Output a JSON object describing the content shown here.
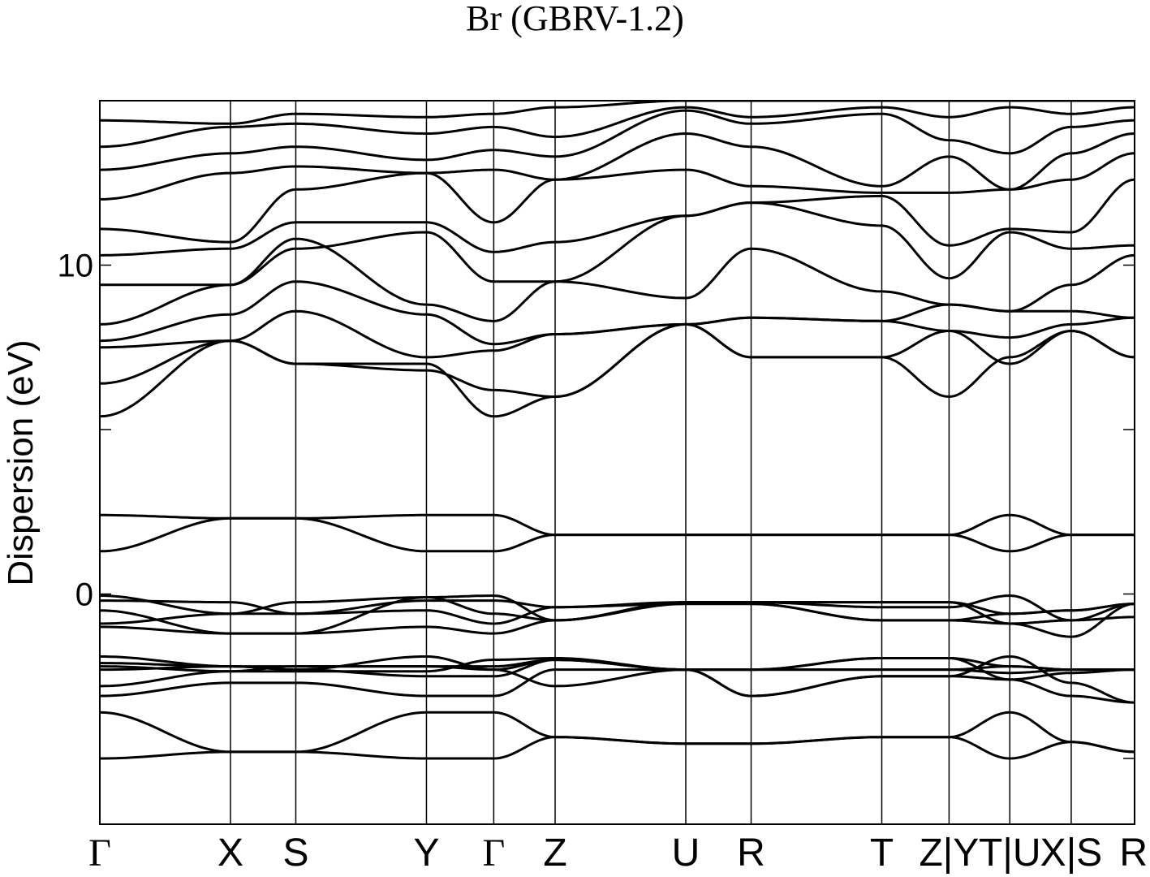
{
  "chart_data": {
    "type": "line",
    "title": "Br (GBRV-1.2)",
    "ylabel": "Dispersion (eV)",
    "ylim": [
      -7.0,
      15.0
    ],
    "yticks": [
      -5,
      0,
      5,
      10,
      15
    ],
    "ytick_labels": [
      "",
      "0",
      "",
      "10",
      ""
    ],
    "x_range": [
      0,
      15.84
    ],
    "kpath": [
      {
        "label": "Γ",
        "x": 0.0
      },
      {
        "label": "X",
        "x": 2.0
      },
      {
        "label": "S",
        "x": 3.0
      },
      {
        "label": "Y",
        "x": 5.0
      },
      {
        "label": "Γ",
        "x": 6.03
      },
      {
        "label": "Z",
        "x": 6.97
      },
      {
        "label": "U",
        "x": 8.97
      },
      {
        "label": "R",
        "x": 9.97
      },
      {
        "label": "T",
        "x": 11.97
      },
      {
        "label": "Z|Y",
        "x": 13.0
      },
      {
        "label": "T|U",
        "x": 13.93
      },
      {
        "label": "X|S",
        "x": 14.87
      },
      {
        "label": "R",
        "x": 15.84
      }
    ],
    "grid": false,
    "line_color": "#000000",
    "series": [
      {
        "y": [
          -5.0,
          -4.8,
          -4.8,
          -5.0,
          -5.0,
          -4.35,
          -4.55,
          -4.55,
          -4.35,
          -4.35,
          -5.0,
          -4.5,
          -4.8
        ]
      },
      {
        "y": [
          -3.6,
          -4.8,
          -4.8,
          -3.6,
          -3.6,
          -4.35,
          -4.55,
          -4.55,
          -4.35,
          -4.35,
          -3.6,
          -4.5,
          -4.8
        ]
      },
      {
        "y": [
          -3.1,
          -2.7,
          -2.7,
          -3.1,
          -3.1,
          -2.3,
          -2.3,
          -2.3,
          -2.3,
          -2.3,
          -2.4,
          -2.3,
          -2.3
        ]
      },
      {
        "y": [
          -2.8,
          -2.35,
          -2.2,
          -2.2,
          -2.2,
          -2.0,
          -2.3,
          -2.3,
          -1.95,
          -1.95,
          -2.2,
          -2.3,
          -2.3
        ]
      },
      {
        "y": [
          -2.3,
          -2.2,
          -2.2,
          -2.2,
          -2.3,
          -2.0,
          -2.3,
          -3.1,
          -2.5,
          -2.5,
          -2.6,
          -3.1,
          -3.3
        ]
      },
      {
        "y": [
          -2.2,
          -2.35,
          -2.35,
          -2.35,
          -2.0,
          -1.95,
          -2.3,
          -3.1,
          -2.5,
          -2.5,
          -1.9,
          -2.7,
          -3.3
        ]
      },
      {
        "y": [
          -1.9,
          -2.2,
          -2.3,
          -2.5,
          -2.5,
          -2.0,
          -2.3,
          -2.3,
          -1.95,
          -1.95,
          -2.6,
          -2.4,
          -2.3
        ]
      },
      {
        "y": [
          -2.1,
          -2.2,
          -2.3,
          -1.9,
          -2.3,
          -2.8,
          -2.3,
          -2.3,
          -2.3,
          -2.3,
          -2.2,
          -2.3,
          -2.3
        ]
      },
      {
        "y": [
          -1.0,
          -1.2,
          -1.2,
          -1.0,
          -1.2,
          -0.8,
          -0.25,
          -0.25,
          -0.25,
          -0.25,
          -0.9,
          -0.8,
          -0.3
        ]
      },
      {
        "y": [
          -0.9,
          -0.6,
          -0.6,
          -0.5,
          -0.9,
          -0.4,
          -0.25,
          -0.25,
          -0.25,
          -0.25,
          -0.6,
          -0.5,
          -0.3
        ]
      },
      {
        "y": [
          -0.5,
          -1.2,
          -1.2,
          -0.1,
          -0.6,
          -0.8,
          -0.3,
          -0.3,
          -0.8,
          -0.8,
          -0.9,
          -1.3,
          -0.3
        ]
      },
      {
        "y": [
          -0.2,
          -0.25,
          -0.6,
          -0.2,
          -0.2,
          -0.4,
          -0.3,
          -0.3,
          -0.8,
          -0.8,
          -0.6,
          -0.5,
          -0.3
        ]
      },
      {
        "y": [
          -0.05,
          -0.6,
          -0.25,
          -0.1,
          -0.05,
          -0.8,
          -0.25,
          -0.25,
          -0.4,
          -0.4,
          -0.05,
          -0.8,
          -0.7
        ]
      },
      {
        "y": [
          1.3,
          2.3,
          2.3,
          1.3,
          1.3,
          1.8,
          1.8,
          1.8,
          1.8,
          1.8,
          2.4,
          1.8,
          1.8
        ]
      },
      {
        "y": [
          2.4,
          2.3,
          2.3,
          2.4,
          2.4,
          1.8,
          1.8,
          1.8,
          1.8,
          1.8,
          1.3,
          1.8,
          1.8
        ]
      },
      {
        "y": [
          5.4,
          7.7,
          7.0,
          7.0,
          5.4,
          6.0,
          8.2,
          7.2,
          7.2,
          6.0,
          7.2,
          8.0,
          7.2
        ]
      },
      {
        "y": [
          6.4,
          7.7,
          7.0,
          6.8,
          6.2,
          6.0,
          8.2,
          7.2,
          7.2,
          8.0,
          7.0,
          8.0,
          7.2
        ]
      },
      {
        "y": [
          7.5,
          7.7,
          8.6,
          7.2,
          7.4,
          7.9,
          8.2,
          8.4,
          8.3,
          8.0,
          7.8,
          8.2,
          8.4
        ]
      },
      {
        "y": [
          7.7,
          8.5,
          9.5,
          8.5,
          7.6,
          7.9,
          8.2,
          8.4,
          8.3,
          8.8,
          8.6,
          8.6,
          8.4
        ]
      },
      {
        "y": [
          8.2,
          9.4,
          10.8,
          8.8,
          8.3,
          9.5,
          9.0,
          10.5,
          9.2,
          8.8,
          8.6,
          9.4,
          10.3
        ]
      },
      {
        "y": [
          9.4,
          9.4,
          10.5,
          11.0,
          9.5,
          9.5,
          11.5,
          11.9,
          11.2,
          9.6,
          11.0,
          10.5,
          10.6
        ]
      },
      {
        "y": [
          10.3,
          10.5,
          11.3,
          11.3,
          10.4,
          10.7,
          11.5,
          11.9,
          12.1,
          10.6,
          11.1,
          11.0,
          12.6
        ]
      },
      {
        "y": [
          11.1,
          10.7,
          12.3,
          12.8,
          11.3,
          12.6,
          12.9,
          12.4,
          12.2,
          12.2,
          12.3,
          12.6,
          13.4
        ]
      },
      {
        "y": [
          12.0,
          12.8,
          13.0,
          12.8,
          12.9,
          12.6,
          14.0,
          13.6,
          12.4,
          13.3,
          12.3,
          13.4,
          14.0
        ]
      },
      {
        "y": [
          12.9,
          13.4,
          13.6,
          13.2,
          13.5,
          13.3,
          14.7,
          14.3,
          14.6,
          13.8,
          13.4,
          14.2,
          14.4
        ]
      },
      {
        "y": [
          13.6,
          14.2,
          14.3,
          14.0,
          14.2,
          13.9,
          14.8,
          14.5,
          14.8,
          14.5,
          14.8,
          14.6,
          14.8
        ]
      },
      {
        "y": [
          14.4,
          14.3,
          14.6,
          14.5,
          14.6,
          14.8,
          15.0,
          15.0,
          15.0,
          15.0,
          15.0,
          15.0,
          15.0
        ]
      }
    ]
  }
}
